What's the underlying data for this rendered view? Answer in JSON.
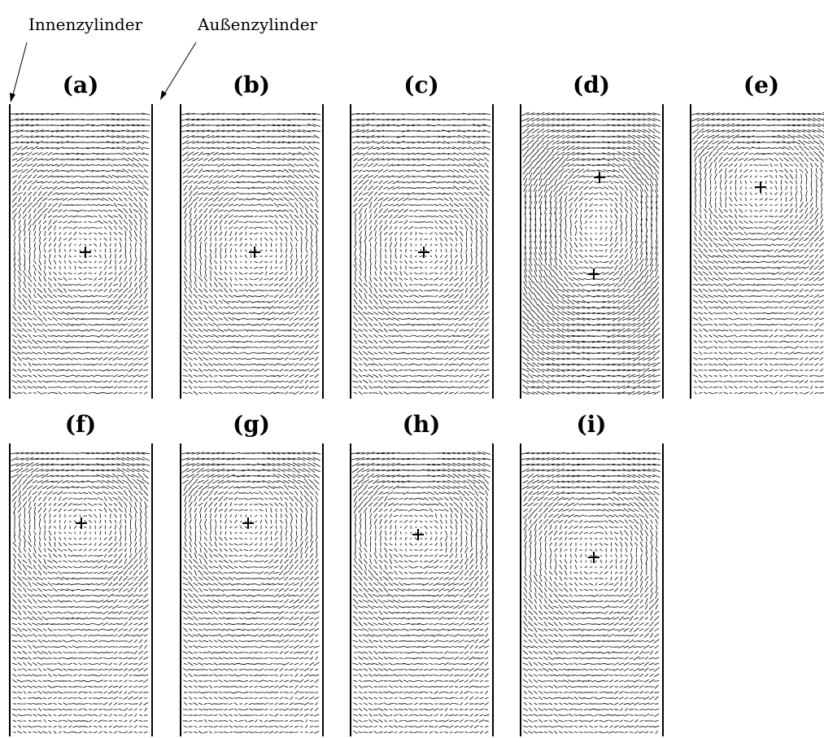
{
  "annotations": {
    "inner": "Innenzylinder",
    "outer": "Außenzylinder"
  },
  "panels": [
    {
      "label": "(a)"
    },
    {
      "label": "(b)"
    },
    {
      "label": "(c)"
    },
    {
      "label": "(d)"
    },
    {
      "label": "(e)"
    },
    {
      "label": "(f)"
    },
    {
      "label": "(g)"
    },
    {
      "label": "(h)"
    },
    {
      "label": "(i)"
    }
  ]
}
